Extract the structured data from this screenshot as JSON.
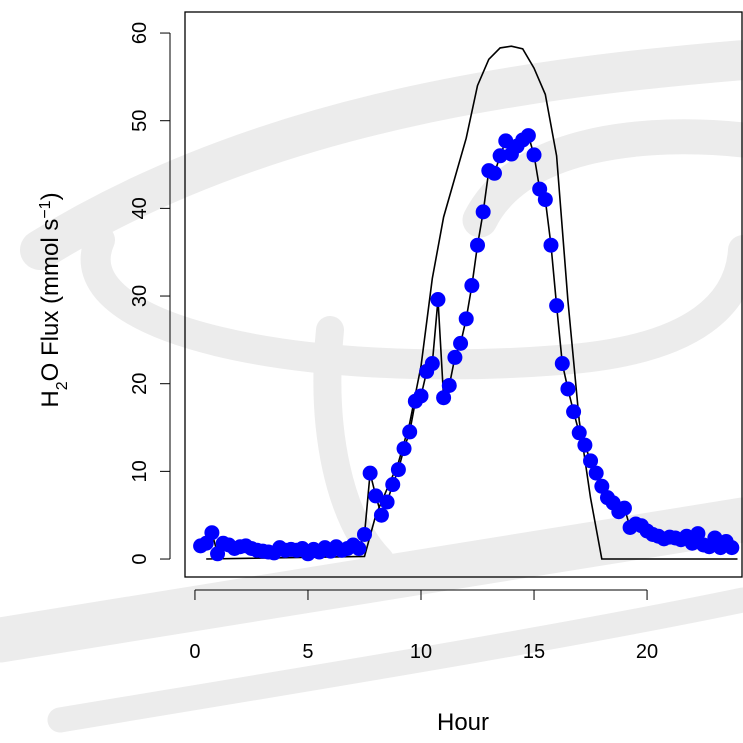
{
  "chart_data": {
    "type": "line",
    "xlabel": "Hour",
    "ylabel": [
      "H",
      "2",
      "O Flux  (mmol s",
      "−1",
      ")"
    ],
    "xlim": [
      -0.44,
      24.2
    ],
    "ylim": [
      -2.05,
      62.4
    ],
    "xticks": [
      0,
      5,
      10,
      15,
      20
    ],
    "yticks": [
      0,
      10,
      20,
      30,
      40,
      50,
      60
    ],
    "series": [
      {
        "style": "line",
        "color": "#000000",
        "x": [
          0.5,
          7.5,
          8,
          9,
          9.5,
          10,
          10.5,
          11,
          12,
          12.5,
          13,
          13.5,
          14,
          14.5,
          15,
          15.5,
          16,
          16.5,
          17,
          17.5,
          18,
          24
        ],
        "values": [
          0,
          0.3,
          5,
          11,
          15.5,
          22,
          32,
          39,
          48,
          54,
          57,
          58.3,
          58.5,
          58.2,
          56,
          53,
          46,
          29.5,
          15.8,
          7,
          0,
          0
        ]
      },
      {
        "style": "points",
        "color": "#0000ff",
        "line_color": "#000000",
        "x": [
          0.25,
          0.5,
          0.75,
          1,
          1.25,
          1.5,
          1.75,
          2,
          2.25,
          2.5,
          2.75,
          3,
          3.25,
          3.5,
          3.75,
          4,
          4.25,
          4.5,
          4.75,
          5,
          5.25,
          5.5,
          5.75,
          6,
          6.25,
          6.5,
          6.75,
          7,
          7.25,
          7.5,
          7.75,
          8,
          8.25,
          8.5,
          8.75,
          9,
          9.25,
          9.5,
          9.75,
          10,
          10.25,
          10.5,
          10.75,
          11,
          11.25,
          11.5,
          11.75,
          12,
          12.25,
          12.5,
          12.75,
          13,
          13.25,
          13.5,
          13.75,
          14,
          14.25,
          14.5,
          14.75,
          15,
          15.25,
          15.5,
          15.75,
          16,
          16.25,
          16.5,
          16.75,
          17,
          17.25,
          17.5,
          17.75,
          18,
          18.25,
          18.5,
          18.75,
          19,
          19.25,
          19.5,
          19.75,
          20,
          20.25,
          20.5,
          20.75,
          21,
          21.25,
          21.5,
          21.75,
          22,
          22.25,
          22.5,
          22.75,
          23,
          23.25,
          23.5,
          23.75
        ],
        "values": [
          1.5,
          1.8,
          3.0,
          0.6,
          1.8,
          1.6,
          1.2,
          1.4,
          1.5,
          1.2,
          1.0,
          0.9,
          0.8,
          0.7,
          1.3,
          1.0,
          1.1,
          1.0,
          1.2,
          0.6,
          1.1,
          0.8,
          1.3,
          0.9,
          1.4,
          1.0,
          1.2,
          1.6,
          1.2,
          2.8,
          9.8,
          7.2,
          5.0,
          6.5,
          8.5,
          10.2,
          12.6,
          14.5,
          18.0,
          18.6,
          21.4,
          22.3,
          29.6,
          18.4,
          19.8,
          23.0,
          24.6,
          27.4,
          31.2,
          35.8,
          39.6,
          44.3,
          44.0,
          46.0,
          47.7,
          46.2,
          47.1,
          47.8,
          48.3,
          46.1,
          42.2,
          41.0,
          35.8,
          28.9,
          22.3,
          19.4,
          16.8,
          14.4,
          13.0,
          11.2,
          9.8,
          8.3,
          7.0,
          6.4,
          5.4,
          5.8,
          3.6,
          4.0,
          3.8,
          3.2,
          2.8,
          2.6,
          2.3,
          2.5,
          2.4,
          2.2,
          2.6,
          1.8,
          2.9,
          1.6,
          1.4,
          2.4,
          1.3,
          2.0,
          1.3
        ]
      }
    ]
  }
}
